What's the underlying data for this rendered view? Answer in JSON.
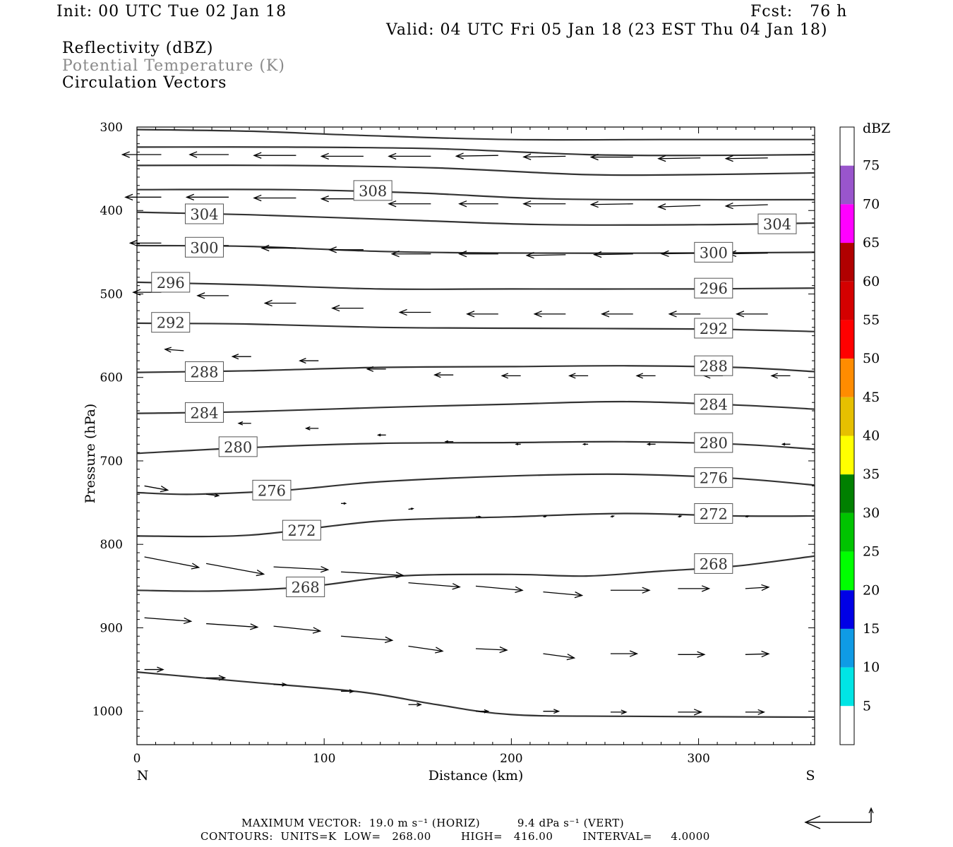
{
  "header": {
    "init": "Init: 00 UTC Tue 02 Jan 18",
    "fcst": "Fcst:   76 h",
    "valid": "Valid: 04 UTC Fri 05 Jan 18 (23 EST Thu 04 Jan 18)",
    "field1": "Reflectivity (dBZ)",
    "field2": "Potential Temperature (K)",
    "field3": "Circulation Vectors"
  },
  "footer": {
    "max_vector": "MAXIMUM VECTOR:  19.0 m s⁻¹ (HORIZ)          9.4 dPa s⁻¹ (VERT)",
    "contours": "CONTOURS:  UNITS=K  LOW=   268.00        HIGH=   416.00        INTERVAL=     4.0000"
  },
  "chart_data": {
    "type": "line",
    "xlabel": "Distance (km)",
    "ylabel": "Pressure (hPa)",
    "xlim": [
      0,
      362
    ],
    "ylim": [
      300,
      1040
    ],
    "y_inverted": true,
    "xticks": [
      0,
      100,
      200,
      300
    ],
    "yticks": [
      300,
      400,
      500,
      600,
      700,
      800,
      900,
      1000
    ],
    "left_label": "N",
    "right_label": "S",
    "colorbar": {
      "unit": "dBZ",
      "levels": [
        5,
        10,
        15,
        20,
        25,
        30,
        35,
        40,
        45,
        50,
        55,
        60,
        65,
        70,
        75
      ],
      "colors": [
        "#ffffff",
        "#00e5e5",
        "#0f9be5",
        "#0000e6",
        "#00ff00",
        "#00c400",
        "#008000",
        "#ffff00",
        "#e6c000",
        "#ff8c00",
        "#ff0000",
        "#d40000",
        "#b00000",
        "#ff00ff",
        "#9955cc",
        "#ffffff"
      ]
    },
    "series": [
      {
        "name": "304",
        "points": [
          [
            0,
            303
          ],
          [
            60,
            305
          ],
          [
            120,
            310
          ],
          [
            200,
            315
          ],
          [
            280,
            315
          ],
          [
            362,
            315
          ]
        ]
      },
      {
        "name": "304",
        "points": [
          [
            0,
            324
          ],
          [
            80,
            324
          ],
          [
            160,
            326
          ],
          [
            240,
            333
          ],
          [
            300,
            334
          ],
          [
            362,
            333
          ]
        ]
      },
      {
        "name": "308",
        "points": [
          [
            0,
            346
          ],
          [
            80,
            346
          ],
          [
            160,
            349
          ],
          [
            240,
            357
          ],
          [
            300,
            357
          ],
          [
            362,
            355
          ]
        ]
      },
      {
        "name": "308",
        "points": [
          [
            0,
            375
          ],
          [
            80,
            375
          ],
          [
            150,
            379
          ],
          [
            220,
            386
          ],
          [
            300,
            387
          ],
          [
            362,
            387
          ]
        ]
      },
      {
        "name": "304",
        "points": [
          [
            0,
            402
          ],
          [
            60,
            405
          ],
          [
            150,
            412
          ],
          [
            220,
            417
          ],
          [
            300,
            417
          ],
          [
            362,
            415
          ]
        ]
      },
      {
        "name": "300",
        "points": [
          [
            0,
            442
          ],
          [
            60,
            443
          ],
          [
            130,
            449
          ],
          [
            200,
            451
          ],
          [
            300,
            451
          ],
          [
            362,
            450
          ]
        ]
      },
      {
        "name": "296",
        "points": [
          [
            0,
            486
          ],
          [
            60,
            489
          ],
          [
            130,
            494
          ],
          [
            200,
            494
          ],
          [
            300,
            494
          ],
          [
            362,
            493
          ]
        ]
      },
      {
        "name": "292",
        "points": [
          [
            0,
            535
          ],
          [
            60,
            536
          ],
          [
            130,
            540
          ],
          [
            200,
            541
          ],
          [
            300,
            542
          ],
          [
            362,
            545
          ]
        ]
      },
      {
        "name": "288",
        "points": [
          [
            0,
            594
          ],
          [
            60,
            592
          ],
          [
            130,
            588
          ],
          [
            200,
            587
          ],
          [
            260,
            586
          ],
          [
            320,
            588
          ],
          [
            362,
            593
          ]
        ]
      },
      {
        "name": "284",
        "points": [
          [
            0,
            643
          ],
          [
            60,
            641
          ],
          [
            130,
            636
          ],
          [
            200,
            632
          ],
          [
            260,
            629
          ],
          [
            320,
            633
          ],
          [
            362,
            638
          ]
        ]
      },
      {
        "name": "280",
        "points": [
          [
            0,
            691
          ],
          [
            60,
            684
          ],
          [
            130,
            679
          ],
          [
            200,
            678
          ],
          [
            260,
            677
          ],
          [
            320,
            680
          ],
          [
            362,
            686
          ]
        ]
      },
      {
        "name": "276",
        "points": [
          [
            0,
            738
          ],
          [
            30,
            740
          ],
          [
            80,
            735
          ],
          [
            130,
            725
          ],
          [
            200,
            718
          ],
          [
            260,
            716
          ],
          [
            320,
            721
          ],
          [
            362,
            729
          ]
        ]
      },
      {
        "name": "272",
        "points": [
          [
            0,
            790
          ],
          [
            60,
            789
          ],
          [
            130,
            772
          ],
          [
            200,
            767
          ],
          [
            260,
            763
          ],
          [
            320,
            766
          ],
          [
            362,
            766
          ]
        ]
      },
      {
        "name": "268",
        "points": [
          [
            0,
            855
          ],
          [
            40,
            856
          ],
          [
            90,
            851
          ],
          [
            140,
            838
          ],
          [
            200,
            836
          ],
          [
            240,
            838
          ],
          [
            280,
            832
          ],
          [
            320,
            826
          ],
          [
            362,
            814
          ]
        ]
      },
      {
        "name": "",
        "points": [
          [
            0,
            953
          ],
          [
            60,
            965
          ],
          [
            120,
            977
          ],
          [
            160,
            992
          ],
          [
            200,
            1004
          ],
          [
            260,
            1006
          ],
          [
            362,
            1007
          ]
        ]
      }
    ],
    "contour_labels": [
      {
        "text": "308",
        "x": 126,
        "y": 376
      },
      {
        "text": "304",
        "x": 36,
        "y": 404
      },
      {
        "text": "304",
        "x": 342,
        "y": 416
      },
      {
        "text": "300",
        "x": 36,
        "y": 444
      },
      {
        "text": "300",
        "x": 308,
        "y": 450
      },
      {
        "text": "296",
        "x": 18,
        "y": 486
      },
      {
        "text": "296",
        "x": 308,
        "y": 493
      },
      {
        "text": "292",
        "x": 18,
        "y": 534
      },
      {
        "text": "292",
        "x": 308,
        "y": 541
      },
      {
        "text": "288",
        "x": 36,
        "y": 593
      },
      {
        "text": "288",
        "x": 308,
        "y": 586
      },
      {
        "text": "284",
        "x": 36,
        "y": 642
      },
      {
        "text": "284",
        "x": 308,
        "y": 632
      },
      {
        "text": "280",
        "x": 54,
        "y": 683
      },
      {
        "text": "280",
        "x": 308,
        "y": 678
      },
      {
        "text": "276",
        "x": 72,
        "y": 735
      },
      {
        "text": "276",
        "x": 308,
        "y": 720
      },
      {
        "text": "272",
        "x": 88,
        "y": 783
      },
      {
        "text": "272",
        "x": 308,
        "y": 763
      },
      {
        "text": "268",
        "x": 90,
        "y": 851
      },
      {
        "text": "268",
        "x": 308,
        "y": 823
      }
    ],
    "vectors": [
      [
        13,
        333,
        -25,
        0
      ],
      [
        49,
        333,
        -25,
        0
      ],
      [
        85,
        334,
        -27,
        0
      ],
      [
        121,
        335,
        -27,
        0
      ],
      [
        157,
        335,
        -27,
        0
      ],
      [
        193,
        334,
        -27,
        1
      ],
      [
        229,
        335,
        -27,
        1
      ],
      [
        265,
        336,
        -27,
        0
      ],
      [
        301,
        337,
        -27,
        1
      ],
      [
        337,
        337,
        -27,
        1
      ],
      [
        13,
        384,
        -23,
        0
      ],
      [
        49,
        384,
        -27,
        0
      ],
      [
        85,
        385,
        -27,
        0
      ],
      [
        121,
        386,
        -27,
        0
      ],
      [
        157,
        392,
        -27,
        0
      ],
      [
        193,
        392,
        -25,
        0
      ],
      [
        229,
        392,
        -27,
        0
      ],
      [
        265,
        392,
        -27,
        1
      ],
      [
        301,
        394,
        -27,
        2
      ],
      [
        337,
        393,
        -27,
        2
      ],
      [
        13,
        439,
        -20,
        0
      ],
      [
        49,
        442,
        -20,
        0
      ],
      [
        85,
        445,
        -22,
        0
      ],
      [
        121,
        447,
        -22,
        0
      ],
      [
        157,
        452,
        -25,
        0
      ],
      [
        193,
        452,
        -25,
        0
      ],
      [
        229,
        453,
        -25,
        1
      ],
      [
        265,
        452,
        -25,
        1
      ],
      [
        301,
        451,
        -25,
        1
      ],
      [
        337,
        451,
        -25,
        1
      ],
      [
        13,
        498,
        -18,
        0
      ],
      [
        49,
        502,
        -20,
        0
      ],
      [
        85,
        511,
        -20,
        0
      ],
      [
        121,
        517,
        -20,
        0
      ],
      [
        157,
        522,
        -20,
        0
      ],
      [
        193,
        524,
        -20,
        0
      ],
      [
        229,
        524,
        -20,
        0
      ],
      [
        265,
        524,
        -20,
        0
      ],
      [
        301,
        524,
        -20,
        0
      ],
      [
        337,
        524,
        -20,
        0
      ],
      [
        25,
        568,
        -12,
        -2
      ],
      [
        61,
        575,
        -12,
        0
      ],
      [
        97,
        580,
        -12,
        0
      ],
      [
        133,
        590,
        -12,
        0
      ],
      [
        169,
        597,
        -12,
        0
      ],
      [
        205,
        598,
        -12,
        0
      ],
      [
        241,
        598,
        -12,
        0
      ],
      [
        277,
        598,
        -12,
        0
      ],
      [
        313,
        598,
        -12,
        0
      ],
      [
        349,
        598,
        -12,
        0
      ],
      [
        61,
        655,
        -8,
        0
      ],
      [
        97,
        661,
        -8,
        0
      ],
      [
        133,
        669,
        -5,
        0
      ],
      [
        169,
        677,
        -5,
        0
      ],
      [
        205,
        680,
        -3,
        0
      ],
      [
        241,
        680,
        -3,
        0
      ],
      [
        277,
        680,
        -5,
        0
      ],
      [
        313,
        680,
        -5,
        0
      ],
      [
        349,
        680,
        -5,
        0
      ],
      [
        4,
        730,
        15,
        6
      ],
      [
        37,
        740,
        8,
        2
      ],
      [
        73,
        743,
        4,
        0
      ],
      [
        109,
        751,
        3,
        0
      ],
      [
        145,
        758,
        3,
        -1
      ],
      [
        181,
        767,
        3,
        0
      ],
      [
        217,
        767,
        2,
        -1
      ],
      [
        253,
        767,
        2,
        -1
      ],
      [
        289,
        767,
        2,
        -1
      ],
      [
        325,
        767,
        2,
        -1
      ],
      [
        4,
        815,
        35,
        15
      ],
      [
        37,
        823,
        37,
        15
      ],
      [
        73,
        827,
        35,
        4
      ],
      [
        109,
        833,
        40,
        5
      ],
      [
        145,
        846,
        33,
        6
      ],
      [
        181,
        850,
        30,
        6
      ],
      [
        217,
        857,
        25,
        5
      ],
      [
        253,
        855,
        25,
        0
      ],
      [
        289,
        853,
        20,
        0
      ],
      [
        325,
        853,
        15,
        -2
      ],
      [
        4,
        888,
        30,
        5
      ],
      [
        37,
        895,
        33,
        5
      ],
      [
        73,
        898,
        30,
        7
      ],
      [
        109,
        910,
        33,
        6
      ],
      [
        145,
        922,
        22,
        7
      ],
      [
        181,
        925,
        20,
        2
      ],
      [
        217,
        931,
        20,
        6
      ],
      [
        253,
        931,
        17,
        0
      ],
      [
        289,
        932,
        17,
        0
      ],
      [
        325,
        932,
        15,
        -1
      ],
      [
        4,
        950,
        12,
        0
      ],
      [
        37,
        960,
        12,
        0
      ],
      [
        73,
        968,
        8,
        0
      ],
      [
        109,
        976,
        8,
        0
      ],
      [
        145,
        992,
        8,
        0
      ],
      [
        181,
        1000,
        8,
        0
      ],
      [
        217,
        1000,
        10,
        0
      ],
      [
        253,
        1001,
        10,
        0
      ],
      [
        289,
        1001,
        15,
        0
      ],
      [
        325,
        1001,
        12,
        0
      ]
    ]
  }
}
